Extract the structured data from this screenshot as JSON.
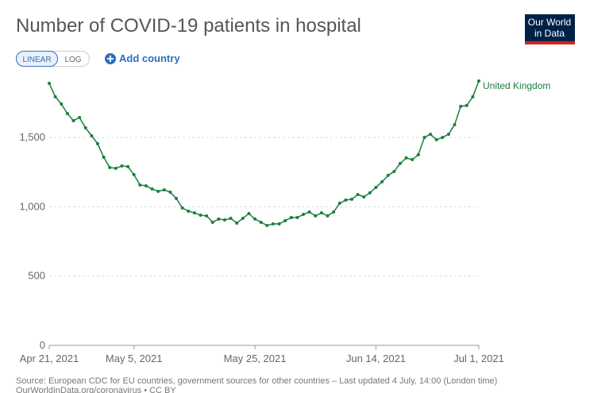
{
  "chart_data": {
    "type": "line",
    "title": "Number of COVID-19 patients in hospital",
    "logo": [
      "Our World",
      "in Data"
    ],
    "controls": {
      "linear": "LINEAR",
      "log": "LOG",
      "add": "Add country"
    },
    "source": "Source: European CDC for EU countries, government sources for other countries – Last updated 4 July, 14:00 (London time)",
    "footer": "OurWorldInData.org/coronavirus • CC BY",
    "x": [
      "2021-04-21",
      "2021-04-22",
      "2021-04-23",
      "2021-04-24",
      "2021-04-25",
      "2021-04-26",
      "2021-04-27",
      "2021-04-28",
      "2021-04-29",
      "2021-04-30",
      "2021-05-01",
      "2021-05-02",
      "2021-05-03",
      "2021-05-04",
      "2021-05-05",
      "2021-05-06",
      "2021-05-07",
      "2021-05-08",
      "2021-05-09",
      "2021-05-10",
      "2021-05-11",
      "2021-05-12",
      "2021-05-13",
      "2021-05-14",
      "2021-05-15",
      "2021-05-16",
      "2021-05-17",
      "2021-05-18",
      "2021-05-19",
      "2021-05-20",
      "2021-05-21",
      "2021-05-22",
      "2021-05-23",
      "2021-05-24",
      "2021-05-25",
      "2021-05-26",
      "2021-05-27",
      "2021-05-28",
      "2021-05-29",
      "2021-05-30",
      "2021-05-31",
      "2021-06-01",
      "2021-06-02",
      "2021-06-03",
      "2021-06-04",
      "2021-06-05",
      "2021-06-06",
      "2021-06-07",
      "2021-06-08",
      "2021-06-09",
      "2021-06-10",
      "2021-06-11",
      "2021-06-12",
      "2021-06-13",
      "2021-06-14",
      "2021-06-15",
      "2021-06-16",
      "2021-06-17",
      "2021-06-18",
      "2021-06-19",
      "2021-06-20",
      "2021-06-21",
      "2021-06-22",
      "2021-06-23",
      "2021-06-24",
      "2021-06-25",
      "2021-06-26",
      "2021-06-27",
      "2021-06-28",
      "2021-06-29",
      "2021-06-30",
      "2021-07-01"
    ],
    "series": [
      {
        "name": "United Kingdom",
        "color": "#1b7f3e",
        "values": [
          1890,
          1793,
          1741,
          1672,
          1621,
          1644,
          1569,
          1512,
          1455,
          1357,
          1283,
          1277,
          1294,
          1289,
          1231,
          1157,
          1151,
          1128,
          1111,
          1122,
          1105,
          1060,
          991,
          968,
          956,
          939,
          934,
          888,
          911,
          905,
          916,
          882,
          916,
          951,
          911,
          888,
          865,
          876,
          876,
          899,
          922,
          922,
          945,
          962,
          934,
          956,
          934,
          962,
          1025,
          1048,
          1054,
          1088,
          1071,
          1100,
          1140,
          1180,
          1226,
          1254,
          1312,
          1352,
          1340,
          1375,
          1500,
          1523,
          1483,
          1500,
          1523,
          1592,
          1724,
          1730,
          1793,
          1907
        ]
      }
    ],
    "xlim": [
      "2021-04-21",
      "2021-07-01"
    ],
    "xticks": [
      {
        "value": "2021-04-21",
        "label": "Apr 21, 2021"
      },
      {
        "value": "2021-05-05",
        "label": "May 5, 2021"
      },
      {
        "value": "2021-05-25",
        "label": "May 25, 2021"
      },
      {
        "value": "2021-06-14",
        "label": "Jun 14, 2021"
      },
      {
        "value": "2021-07-01",
        "label": "Jul 1, 2021"
      }
    ],
    "ylim": [
      0,
      1910
    ],
    "yticks": [
      0,
      500,
      {
        "value": 1000,
        "label": "1,000"
      },
      {
        "value": 1500,
        "label": "1,500"
      }
    ],
    "grid": true
  }
}
